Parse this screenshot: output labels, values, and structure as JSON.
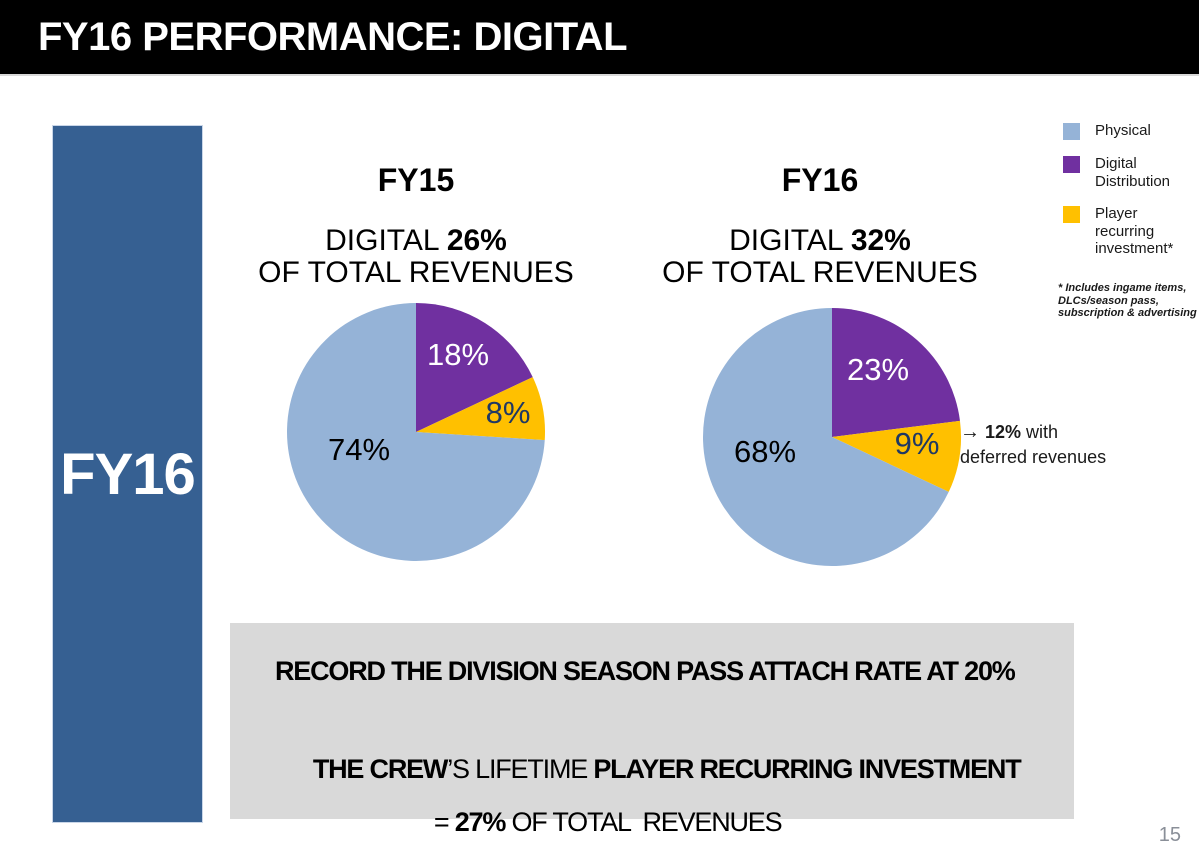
{
  "header": {
    "title": "FY16 PERFORMANCE: DIGITAL"
  },
  "side_label": "FY16",
  "columns": [
    {
      "title": "FY15",
      "sub_prefix": "DIGITAL ",
      "sub_bold": "26%",
      "sub_line2": "OF TOTAL REVENUES"
    },
    {
      "title": "FY16",
      "sub_prefix": "DIGITAL ",
      "sub_bold": "32%",
      "sub_line2": "OF TOTAL REVENUES"
    }
  ],
  "chart_data": [
    {
      "type": "pie",
      "title": "FY15",
      "subtitle": "DIGITAL 26% OF TOTAL REVENUES",
      "start_angle_deg": 0,
      "direction": "clockwise",
      "slices": [
        {
          "label": "Digital Distribution",
          "value": 18,
          "display": "18%",
          "color": "#7030A0",
          "label_color": "#FFFFFF"
        },
        {
          "label": "Player recurring investment",
          "value": 8,
          "display": "8%",
          "color": "#FFC000",
          "label_color": "#1F3864"
        },
        {
          "label": "Physical",
          "value": 74,
          "display": "74%",
          "color": "#95B3D7",
          "label_color": "#000000"
        }
      ]
    },
    {
      "type": "pie",
      "title": "FY16",
      "subtitle": "DIGITAL 32% OF TOTAL REVENUES",
      "start_angle_deg": 0,
      "direction": "clockwise",
      "slices": [
        {
          "label": "Digital Distribution",
          "value": 23,
          "display": "23%",
          "color": "#7030A0",
          "label_color": "#FFFFFF"
        },
        {
          "label": "Player recurring investment",
          "value": 9,
          "display": "9%",
          "color": "#FFC000",
          "label_color": "#1F3864"
        },
        {
          "label": "Physical",
          "value": 68,
          "display": "68%",
          "color": "#95B3D7",
          "label_color": "#000000"
        }
      ]
    }
  ],
  "annotation": {
    "arrow": "→",
    "bold": " 12%",
    "text": " with deferred revenues"
  },
  "legend": {
    "items": [
      {
        "label": "Physical",
        "color": "#95B3D7"
      },
      {
        "label": "Digital Distribution",
        "color": "#7030A0"
      },
      {
        "label": "Player recurring investment*",
        "color": "#FFC000"
      }
    ],
    "footnote": "* Includes ingame items, DLCs/season pass, subscription & advertising"
  },
  "callout": {
    "line1": "RECORD THE DIVISION SEASON PASS ATTACH RATE AT 20%",
    "line2_bold1": "THE CREW",
    "line2_normal1": "’S LIFETIME ",
    "line2_bold2": "PLAYER RECURRING INVESTMENT",
    "line3_normal1": "= ",
    "line3_bold1": "27%",
    "line3_normal2": " OF TOTAL  REVENUES"
  },
  "page_number": "15",
  "colors": {
    "header_bg": "#000000",
    "side_bar": "#366092",
    "callout_bg": "#D9D9D9",
    "physical": "#95B3D7",
    "digital_distribution": "#7030A0",
    "player_recurring": "#FFC000",
    "navy_label": "#1F3864"
  }
}
